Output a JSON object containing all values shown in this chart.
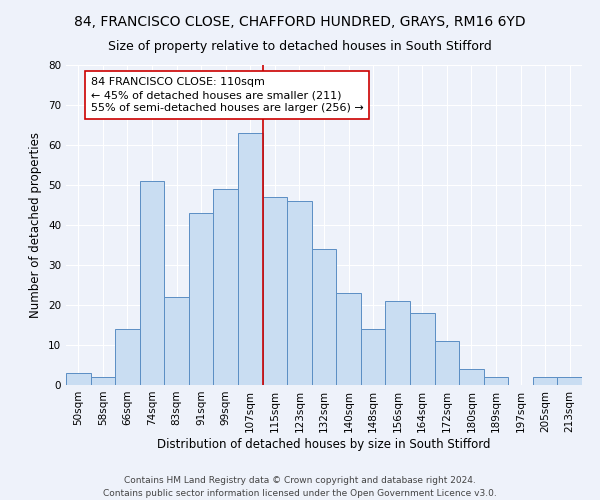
{
  "title_line1": "84, FRANCISCO CLOSE, CHAFFORD HUNDRED, GRAYS, RM16 6YD",
  "title_line2": "Size of property relative to detached houses in South Stifford",
  "xlabel": "Distribution of detached houses by size in South Stifford",
  "ylabel": "Number of detached properties",
  "categories": [
    "50sqm",
    "58sqm",
    "66sqm",
    "74sqm",
    "83sqm",
    "91sqm",
    "99sqm",
    "107sqm",
    "115sqm",
    "123sqm",
    "132sqm",
    "140sqm",
    "148sqm",
    "156sqm",
    "164sqm",
    "172sqm",
    "180sqm",
    "189sqm",
    "197sqm",
    "205sqm",
    "213sqm"
  ],
  "values": [
    3,
    2,
    14,
    51,
    22,
    43,
    49,
    63,
    47,
    46,
    34,
    23,
    14,
    21,
    18,
    11,
    4,
    2,
    0,
    2,
    2
  ],
  "bar_color": "#c9ddf2",
  "bar_edge_color": "#5b8ec4",
  "vline_color": "#cc0000",
  "vline_x_index": 7,
  "annotation_text": "84 FRANCISCO CLOSE: 110sqm\n← 45% of detached houses are smaller (211)\n55% of semi-detached houses are larger (256) →",
  "annotation_box_color": "#ffffff",
  "annotation_border_color": "#cc0000",
  "ylim": [
    0,
    80
  ],
  "yticks": [
    0,
    10,
    20,
    30,
    40,
    50,
    60,
    70,
    80
  ],
  "background_color": "#eef2fa",
  "footer_text": "Contains HM Land Registry data © Crown copyright and database right 2024.\nContains public sector information licensed under the Open Government Licence v3.0.",
  "title_fontsize": 10,
  "subtitle_fontsize": 9,
  "axis_label_fontsize": 8.5,
  "tick_fontsize": 7.5,
  "annotation_fontsize": 8,
  "footer_fontsize": 6.5
}
